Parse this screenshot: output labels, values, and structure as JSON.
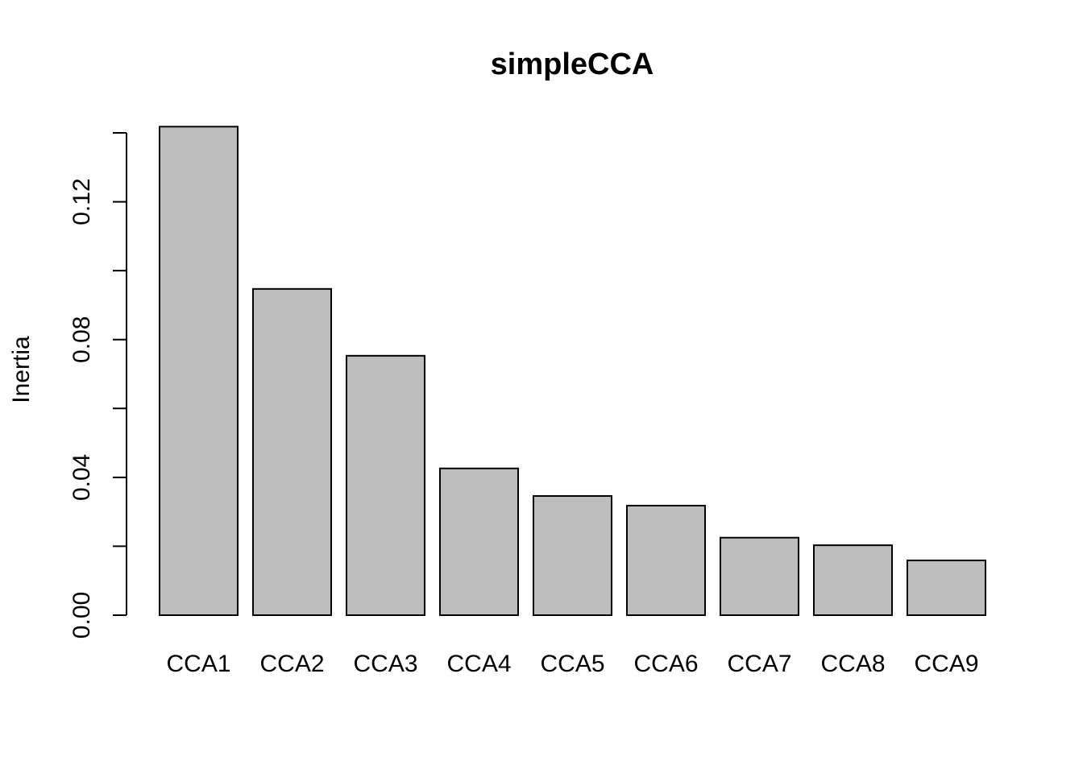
{
  "chart_data": {
    "type": "bar",
    "title": "simpleCCA",
    "xlabel": "",
    "ylabel": "Inertia",
    "categories": [
      "CCA1",
      "CCA2",
      "CCA3",
      "CCA4",
      "CCA5",
      "CCA6",
      "CCA7",
      "CCA8",
      "CCA9"
    ],
    "values": [
      0.1418,
      0.0947,
      0.0753,
      0.0426,
      0.0346,
      0.0318,
      0.0225,
      0.0203,
      0.0159
    ],
    "ylim": [
      0,
      0.14
    ],
    "y_ticks": [
      0,
      0.02,
      0.04,
      0.06,
      0.08,
      0.1,
      0.12,
      0.14
    ],
    "y_tick_labels": [
      "0.00",
      "",
      "0.04",
      "",
      "0.08",
      "",
      "0.12",
      ""
    ],
    "bar_color": "#bebebe",
    "grid": false,
    "legend": "none"
  }
}
